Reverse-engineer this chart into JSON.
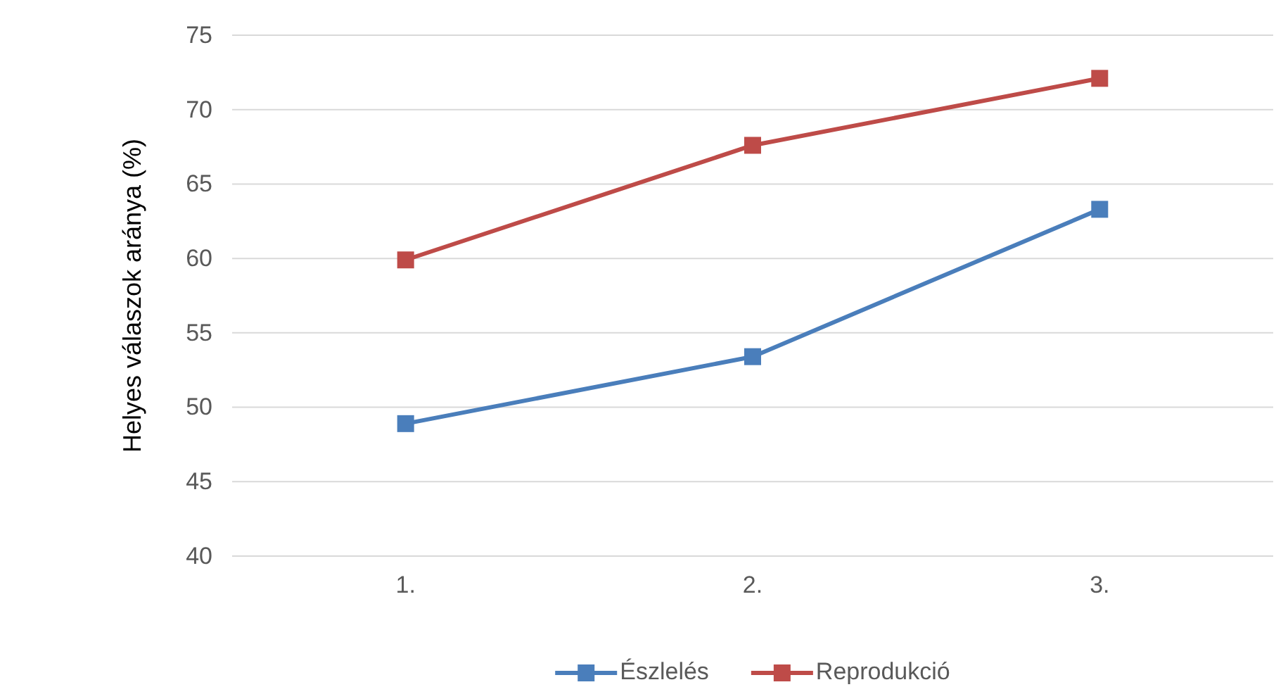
{
  "chart_data": {
    "type": "line",
    "ylabel": "Helyes válaszok aránya (%)",
    "categories": [
      "1.",
      "2.",
      "3."
    ],
    "series": [
      {
        "name": "Észlelés",
        "color": "#4a7ebb",
        "values": [
          48.9,
          53.4,
          63.3
        ]
      },
      {
        "name": "Reprodukció",
        "color": "#be4b48",
        "values": [
          59.9,
          67.6,
          72.1
        ]
      }
    ],
    "ylim": [
      40,
      75
    ],
    "yticks": [
      40,
      45,
      50,
      55,
      60,
      65,
      70,
      75
    ],
    "grid": "y",
    "legend": "bottom",
    "marker": "square",
    "line_style": "solid"
  }
}
